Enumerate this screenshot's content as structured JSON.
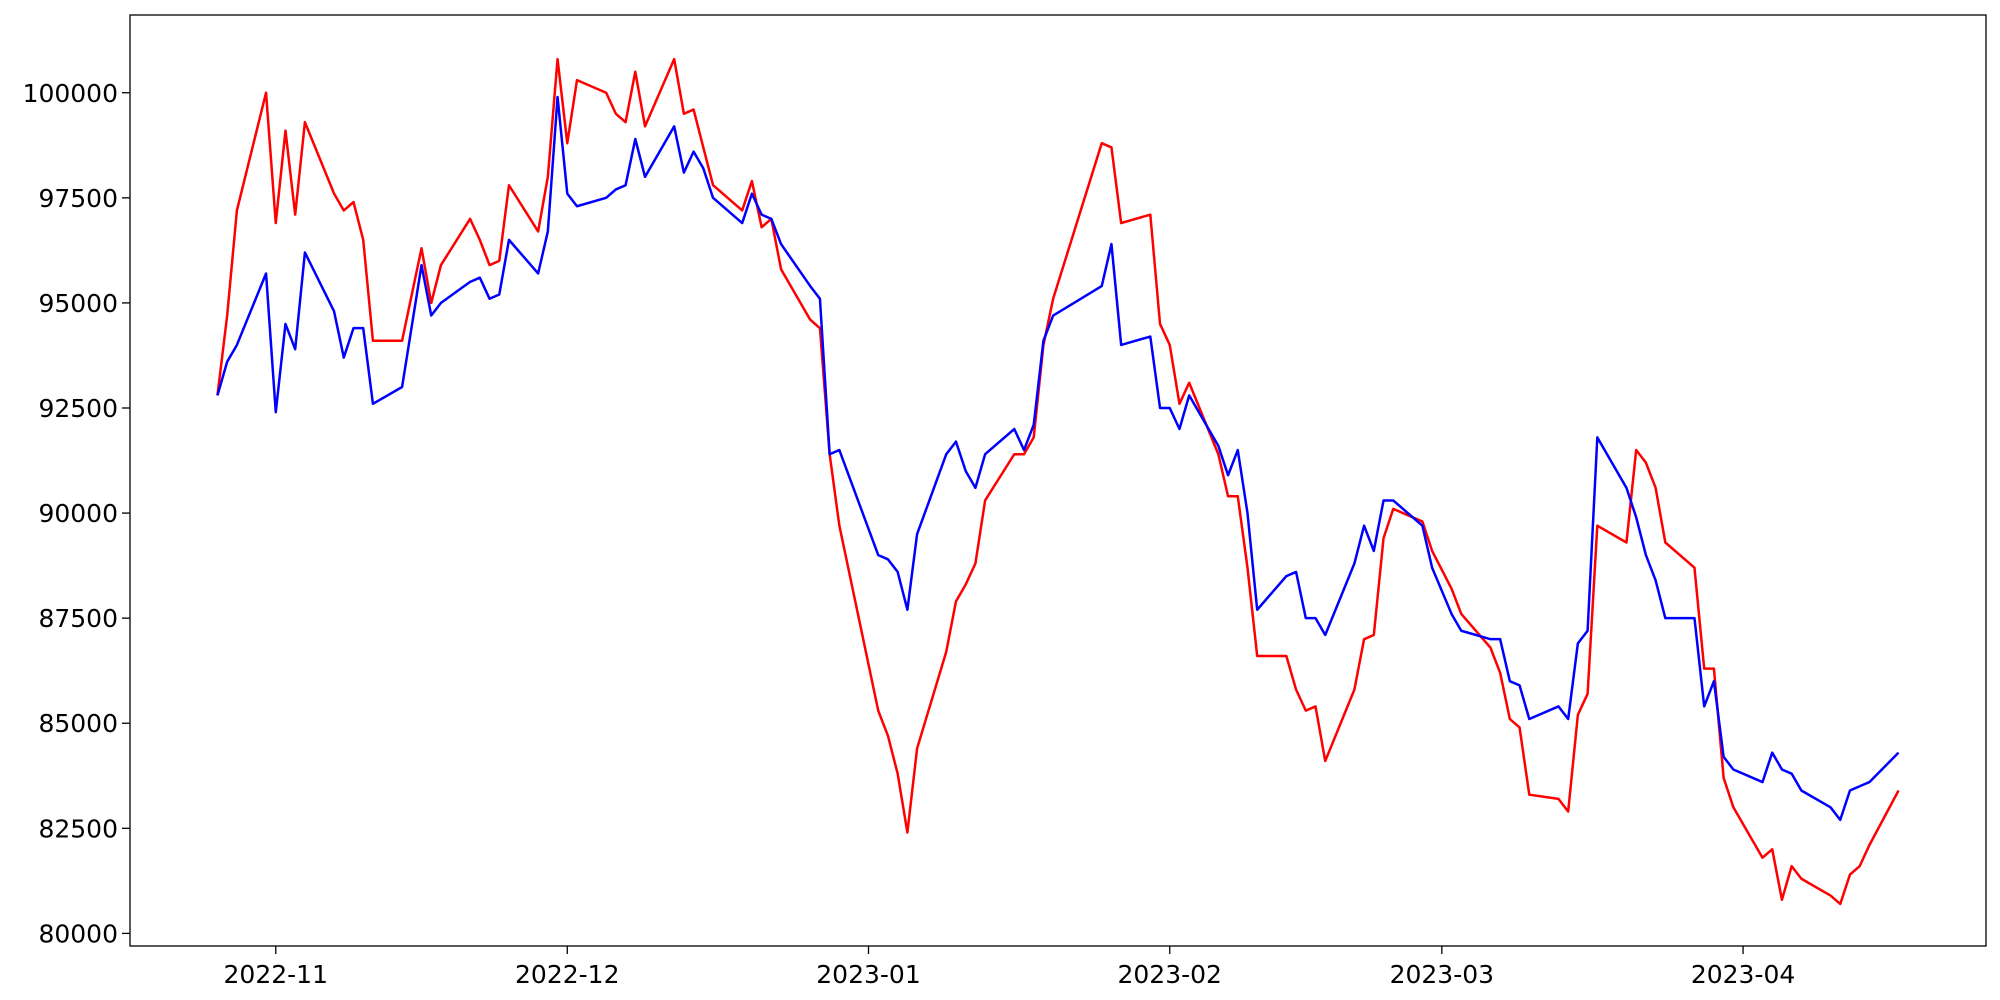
{
  "chart_data": {
    "type": "line",
    "x": [
      "2022-10-26",
      "2022-10-27",
      "2022-10-28",
      "2022-10-31",
      "2022-11-01",
      "2022-11-02",
      "2022-11-03",
      "2022-11-04",
      "2022-11-07",
      "2022-11-08",
      "2022-11-09",
      "2022-11-10",
      "2022-11-11",
      "2022-11-14",
      "2022-11-16",
      "2022-11-17",
      "2022-11-18",
      "2022-11-21",
      "2022-11-22",
      "2022-11-23",
      "2022-11-24",
      "2022-11-25",
      "2022-11-28",
      "2022-11-29",
      "2022-11-30",
      "2022-12-01",
      "2022-12-02",
      "2022-12-05",
      "2022-12-06",
      "2022-12-07",
      "2022-12-08",
      "2022-12-09",
      "2022-12-12",
      "2022-12-13",
      "2022-12-14",
      "2022-12-15",
      "2022-12-16",
      "2022-12-19",
      "2022-12-20",
      "2022-12-21",
      "2022-12-22",
      "2022-12-23",
      "2022-12-26",
      "2022-12-27",
      "2022-12-28",
      "2022-12-29",
      "2023-01-02",
      "2023-01-03",
      "2023-01-04",
      "2023-01-05",
      "2023-01-06",
      "2023-01-09",
      "2023-01-10",
      "2023-01-11",
      "2023-01-12",
      "2023-01-13",
      "2023-01-16",
      "2023-01-17",
      "2023-01-18",
      "2023-01-19",
      "2023-01-20",
      "2023-01-25",
      "2023-01-26",
      "2023-01-27",
      "2023-01-30",
      "2023-01-31",
      "2023-02-01",
      "2023-02-02",
      "2023-02-03",
      "2023-02-06",
      "2023-02-07",
      "2023-02-08",
      "2023-02-09",
      "2023-02-10",
      "2023-02-13",
      "2023-02-14",
      "2023-02-15",
      "2023-02-16",
      "2023-02-17",
      "2023-02-20",
      "2023-02-21",
      "2023-02-22",
      "2023-02-23",
      "2023-02-24",
      "2023-02-27",
      "2023-02-28",
      "2023-03-02",
      "2023-03-03",
      "2023-03-06",
      "2023-03-07",
      "2023-03-08",
      "2023-03-09",
      "2023-03-10",
      "2023-03-13",
      "2023-03-14",
      "2023-03-15",
      "2023-03-16",
      "2023-03-17",
      "2023-03-20",
      "2023-03-21",
      "2023-03-22",
      "2023-03-23",
      "2023-03-24",
      "2023-03-27",
      "2023-03-28",
      "2023-03-29",
      "2023-03-30",
      "2023-03-31",
      "2023-04-03",
      "2023-04-04",
      "2023-04-05",
      "2023-04-06",
      "2023-04-07",
      "2023-04-10",
      "2023-04-11",
      "2023-04-12",
      "2023-04-13",
      "2023-04-14",
      "2023-04-17"
    ],
    "series": [
      {
        "color": "#ff0000",
        "values": [
          92800,
          94700,
          97200,
          100000,
          96900,
          99100,
          97100,
          99300,
          97600,
          97200,
          97400,
          96500,
          94100,
          94100,
          96300,
          95000,
          95900,
          97000,
          96500,
          95900,
          96000,
          97800,
          96700,
          98000,
          100800,
          98800,
          100300,
          100000,
          99500,
          99300,
          100500,
          99200,
          100800,
          99500,
          99600,
          98700,
          97800,
          97200,
          97900,
          96800,
          97000,
          95800,
          94600,
          94400,
          91400,
          89700,
          85300,
          84700,
          83800,
          82400,
          84400,
          86700,
          87900,
          88300,
          88800,
          90300,
          91400,
          91400,
          91800,
          94000,
          95100,
          98800,
          98700,
          96900,
          97100,
          94500,
          94000,
          92600,
          93100,
          91400,
          90400,
          90400,
          88700,
          86600,
          86600,
          85800,
          85300,
          85400,
          84100,
          85800,
          87000,
          87100,
          89400,
          90100,
          89800,
          89100,
          88200,
          87600,
          86800,
          86200,
          85100,
          84900,
          83300,
          83200,
          82900,
          85200,
          85700,
          89700,
          89300,
          91500,
          91200,
          90600,
          89300,
          88700,
          86300,
          86300,
          83700,
          83000,
          81800,
          82000,
          80800,
          81600,
          81300,
          80900,
          80700,
          81400,
          81600,
          82100,
          83400
        ]
      },
      {
        "color": "#0000ff",
        "values": [
          92800,
          93600,
          94000,
          95700,
          92400,
          94500,
          93900,
          96200,
          94800,
          93700,
          94400,
          94400,
          92600,
          93000,
          95900,
          94700,
          95000,
          95500,
          95600,
          95100,
          95200,
          96500,
          95700,
          96700,
          99900,
          97600,
          97300,
          97500,
          97700,
          97800,
          98900,
          98000,
          99200,
          98100,
          98600,
          98200,
          97500,
          96900,
          97600,
          97100,
          97000,
          96400,
          95400,
          95100,
          91400,
          91500,
          89000,
          88900,
          88600,
          87700,
          89500,
          91400,
          91700,
          91000,
          90600,
          91400,
          92000,
          91500,
          92100,
          94100,
          94700,
          95400,
          96400,
          94000,
          94200,
          92500,
          92500,
          92000,
          92800,
          91600,
          90900,
          91500,
          90000,
          87700,
          88500,
          88600,
          87500,
          87500,
          87100,
          88800,
          89700,
          89100,
          90300,
          90300,
          89700,
          88700,
          87600,
          87200,
          87000,
          87000,
          86000,
          85900,
          85100,
          85400,
          85100,
          86900,
          87200,
          91800,
          90600,
          89900,
          89000,
          88400,
          87500,
          87500,
          85400,
          86000,
          84200,
          83900,
          83600,
          84300,
          83900,
          83800,
          83400,
          83000,
          82700,
          83400,
          83500,
          83600,
          84300
        ]
      }
    ],
    "xlim": [
      "2022-10-17",
      "2023-04-26"
    ],
    "xticks": [
      {
        "value": "2022-11-01",
        "label": "2022-11"
      },
      {
        "value": "2022-12-01",
        "label": "2022-12"
      },
      {
        "value": "2023-01-01",
        "label": "2023-01"
      },
      {
        "value": "2023-02-01",
        "label": "2023-02"
      },
      {
        "value": "2023-03-01",
        "label": "2023-03"
      },
      {
        "value": "2023-04-01",
        "label": "2023-04"
      }
    ],
    "ylim": [
      79700,
      101850
    ],
    "yticks": [
      80000,
      82500,
      85000,
      87500,
      90000,
      92500,
      95000,
      97500,
      100000
    ]
  }
}
